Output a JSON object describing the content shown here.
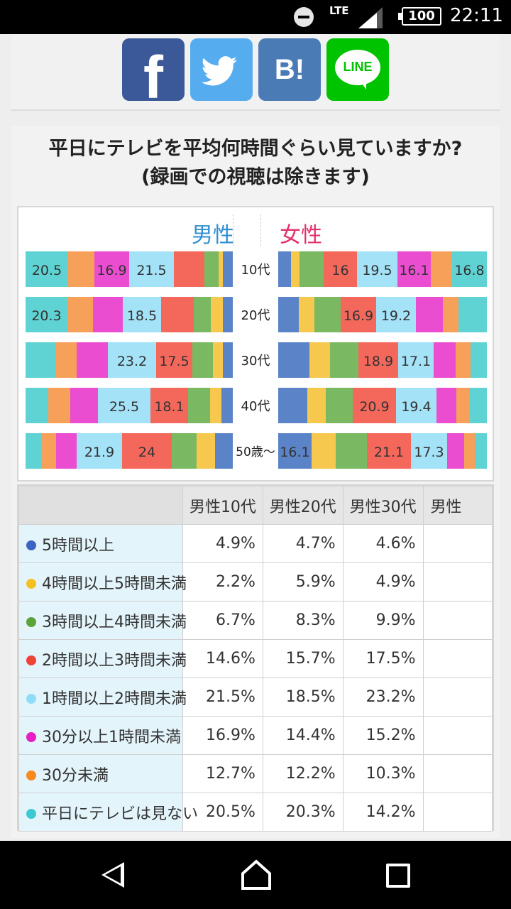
{
  "status": {
    "network": "LTE",
    "battery": "100",
    "time": "22:11"
  },
  "share": {
    "facebook_glyph": "f",
    "hatena_glyph": "B!",
    "line_glyph": "LINE"
  },
  "question": {
    "line1": "平日にテレビを平均何時間ぐらい見ていますか?",
    "line2": "(録画での視聴は除きます)"
  },
  "chart_data": {
    "type": "bar",
    "stacked": true,
    "orientation": "horizontal",
    "groups": [
      "男性",
      "女性"
    ],
    "categories": [
      "10代",
      "20代",
      "30代",
      "40代",
      "50歳〜"
    ],
    "series_order": [
      "平日にテレビは見ない",
      "30分未満",
      "30分以上1時間未満",
      "1時間以上2時間未満",
      "2時間以上3時間未満",
      "3時間以上4時間未満",
      "4時間以上5時間未満",
      "5時間以上"
    ],
    "colors": {
      "平日にテレビは見ない": "#5fd3d3",
      "30分未満": "#f7a05a",
      "30分以上1時間未満": "#ea4dd0",
      "1時間以上2時間未満": "#a4e2f7",
      "2時間以上3時間未満": "#f4685c",
      "3時間以上4時間未満": "#7ab862",
      "4時間以上5時間未満": "#f6c84e",
      "5時間以上": "#5b84c8"
    },
    "male": [
      {
        "age": "10代",
        "values": [
          20.5,
          12.7,
          16.9,
          21.5,
          14.6,
          6.7,
          2.2,
          4.9
        ],
        "labels": [
          "20.5",
          "",
          "16.9",
          "21.5",
          "",
          "",
          "",
          ""
        ]
      },
      {
        "age": "20代",
        "values": [
          20.3,
          12.2,
          14.4,
          18.5,
          15.7,
          8.3,
          5.9,
          4.7
        ],
        "labels": [
          "20.3",
          "",
          "",
          "18.5",
          "",
          "",
          "",
          ""
        ]
      },
      {
        "age": "30代",
        "values": [
          14.2,
          10.3,
          15.2,
          23.2,
          17.5,
          9.9,
          4.9,
          4.6
        ],
        "labels": [
          "",
          "",
          "",
          "23.2",
          "17.5",
          "",
          "",
          ""
        ]
      },
      {
        "age": "40代",
        "values": [
          11.0,
          10.5,
          13.4,
          25.5,
          18.1,
          10.5,
          5.5,
          5.5
        ],
        "labels": [
          "",
          "",
          "",
          "25.5",
          "18.1",
          "",
          "",
          ""
        ]
      },
      {
        "age": "50歳〜",
        "values": [
          8.0,
          7.0,
          10.0,
          21.9,
          24.0,
          12.0,
          9.0,
          8.1
        ],
        "labels": [
          "",
          "",
          "",
          "21.9",
          "24",
          "",
          "",
          ""
        ]
      }
    ],
    "female": [
      {
        "age": "10代",
        "values": [
          6.0,
          4.0,
          11.5,
          16.0,
          19.5,
          16.1,
          10.1,
          16.8
        ],
        "labels": [
          "",
          "",
          "",
          "16",
          "19.5",
          "16.1",
          "",
          "16.8"
        ],
        "order": [
          "5時間以上",
          "4時間以上5時間未満",
          "3時間以上4時間未満",
          "2時間以上3時間未満",
          "1時間以上2時間未満",
          "30分以上1時間未満",
          "30分未満",
          "平日にテレビは見ない"
        ]
      },
      {
        "age": "20代",
        "values": [
          10.0,
          7.5,
          12.5,
          16.9,
          19.2,
          12.8,
          7.6,
          13.5
        ],
        "labels": [
          "",
          "",
          "",
          "16.9",
          "19.2",
          "",
          "",
          ""
        ]
      },
      {
        "age": "30代",
        "values": [
          15.0,
          10.0,
          13.5,
          18.9,
          17.1,
          10.5,
          7.0,
          8.0
        ],
        "labels": [
          "",
          "",
          "",
          "18.9",
          "17.1",
          "",
          "",
          ""
        ]
      },
      {
        "age": "40代",
        "values": [
          14.0,
          9.0,
          13.0,
          20.9,
          19.4,
          9.5,
          6.0,
          8.2
        ],
        "labels": [
          "",
          "",
          "",
          "20.9",
          "19.4",
          "",
          "",
          ""
        ]
      },
      {
        "age": "50歳〜",
        "values": [
          16.1,
          11.5,
          15.0,
          21.1,
          17.3,
          8.0,
          5.0,
          6.0
        ],
        "labels": [
          "16.1",
          "",
          "",
          "21.1",
          "17.3",
          "",
          "",
          ""
        ]
      }
    ]
  },
  "table": {
    "columns": [
      "男性10代",
      "男性20代",
      "男性30代",
      "男性"
    ],
    "rows": [
      {
        "label": "5時間以上",
        "color": "#3d63c4",
        "values": [
          "4.9%",
          "4.7%",
          "4.6%",
          ""
        ]
      },
      {
        "label": "4時間以上5時間未満",
        "color": "#f5c11e",
        "values": [
          "2.2%",
          "5.9%",
          "4.9%",
          ""
        ]
      },
      {
        "label": "3時間以上4時間未満",
        "color": "#5ea23a",
        "values": [
          "6.7%",
          "8.3%",
          "9.9%",
          ""
        ]
      },
      {
        "label": "2時間以上3時間未満",
        "color": "#ef4336",
        "values": [
          "14.6%",
          "15.7%",
          "17.5%",
          ""
        ]
      },
      {
        "label": "1時間以上2時間未満",
        "color": "#8fdcf7",
        "values": [
          "21.5%",
          "18.5%",
          "23.2%",
          ""
        ]
      },
      {
        "label": "30分以上1時間未満",
        "color": "#e91fc6",
        "values": [
          "16.9%",
          "14.4%",
          "15.2%",
          ""
        ]
      },
      {
        "label": "30分未満",
        "color": "#f9881e",
        "values": [
          "12.7%",
          "12.2%",
          "10.3%",
          ""
        ]
      },
      {
        "label": "平日にテレビは見ない",
        "color": "#3cc9d1",
        "values": [
          "20.5%",
          "20.3%",
          "14.2%",
          ""
        ]
      }
    ]
  }
}
